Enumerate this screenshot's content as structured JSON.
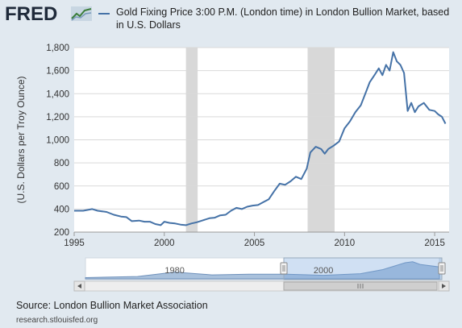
{
  "header": {
    "logo_text": "FRED",
    "logo_icon": "fred-graph-icon"
  },
  "colors": {
    "series": "#4572a7",
    "recession": "#d8d8d8",
    "background": "#e1e9f0",
    "plot_bg": "#ffffff"
  },
  "navigator": {
    "labels": [
      "1980",
      "2000"
    ],
    "scroll_left_icon": "arrow-left-icon",
    "scroll_right_icon": "arrow-right-icon",
    "grip_icon": "grip-icon"
  },
  "footer": {
    "source": "Source: London Bullion Market Association",
    "url": "research.stlouisfed.org"
  },
  "chart_data": {
    "type": "line",
    "title": "",
    "legend": [
      "Gold Fixing Price 3:00 P.M. (London time) in London Bullion Market, based in U.S. Dollars"
    ],
    "ylabel": "(U.S. Dollars per Troy Ounce)",
    "xlabel": "",
    "xlim": [
      1995,
      2015.8
    ],
    "ylim": [
      200,
      1800
    ],
    "xticks": [
      1995,
      2000,
      2005,
      2010,
      2015
    ],
    "yticks": [
      200,
      400,
      600,
      800,
      1000,
      1200,
      1400,
      1600,
      1800
    ],
    "ytick_labels": [
      "200",
      "400",
      "600",
      "800",
      "1,000",
      "1,200",
      "1,400",
      "1,600",
      "1,800"
    ],
    "grid": true,
    "recessions": [
      [
        2001.2,
        2001.85
      ],
      [
        2007.95,
        2009.45
      ]
    ],
    "series": [
      {
        "name": "Gold Fixing Price 3:00 P.M. (London time) in London Bullion Market, based in U.S. Dollars",
        "x": [
          1995.0,
          1995.5,
          1996.0,
          1996.3,
          1996.8,
          1997.2,
          1997.6,
          1997.9,
          1998.2,
          1998.6,
          1998.9,
          1999.2,
          1999.5,
          1999.8,
          2000.0,
          2000.3,
          2000.6,
          2000.9,
          2001.2,
          2001.5,
          2001.8,
          2002.1,
          2002.5,
          2002.8,
          2003.1,
          2003.4,
          2003.7,
          2004.0,
          2004.3,
          2004.6,
          2004.9,
          2005.2,
          2005.5,
          2005.8,
          2006.1,
          2006.4,
          2006.7,
          2007.0,
          2007.3,
          2007.6,
          2007.9,
          2008.1,
          2008.4,
          2008.7,
          2008.9,
          2009.1,
          2009.4,
          2009.7,
          2010.0,
          2010.3,
          2010.6,
          2010.9,
          2011.2,
          2011.4,
          2011.7,
          2011.9,
          2012.1,
          2012.3,
          2012.5,
          2012.7,
          2012.9,
          2013.1,
          2013.3,
          2013.5,
          2013.7,
          2013.9,
          2014.1,
          2014.4,
          2014.7,
          2015.0,
          2015.2,
          2015.4,
          2015.6
        ],
        "y": [
          385,
          385,
          400,
          385,
          375,
          350,
          335,
          330,
          295,
          300,
          290,
          290,
          270,
          260,
          290,
          280,
          275,
          265,
          260,
          275,
          285,
          300,
          320,
          325,
          345,
          350,
          385,
          410,
          400,
          420,
          430,
          435,
          460,
          485,
          555,
          620,
          610,
          640,
          680,
          660,
          750,
          890,
          940,
          920,
          880,
          920,
          950,
          985,
          1100,
          1160,
          1240,
          1300,
          1420,
          1500,
          1570,
          1620,
          1560,
          1650,
          1600,
          1760,
          1680,
          1650,
          1580,
          1250,
          1320,
          1240,
          1290,
          1320,
          1260,
          1250,
          1220,
          1200,
          1140
        ]
      }
    ]
  }
}
